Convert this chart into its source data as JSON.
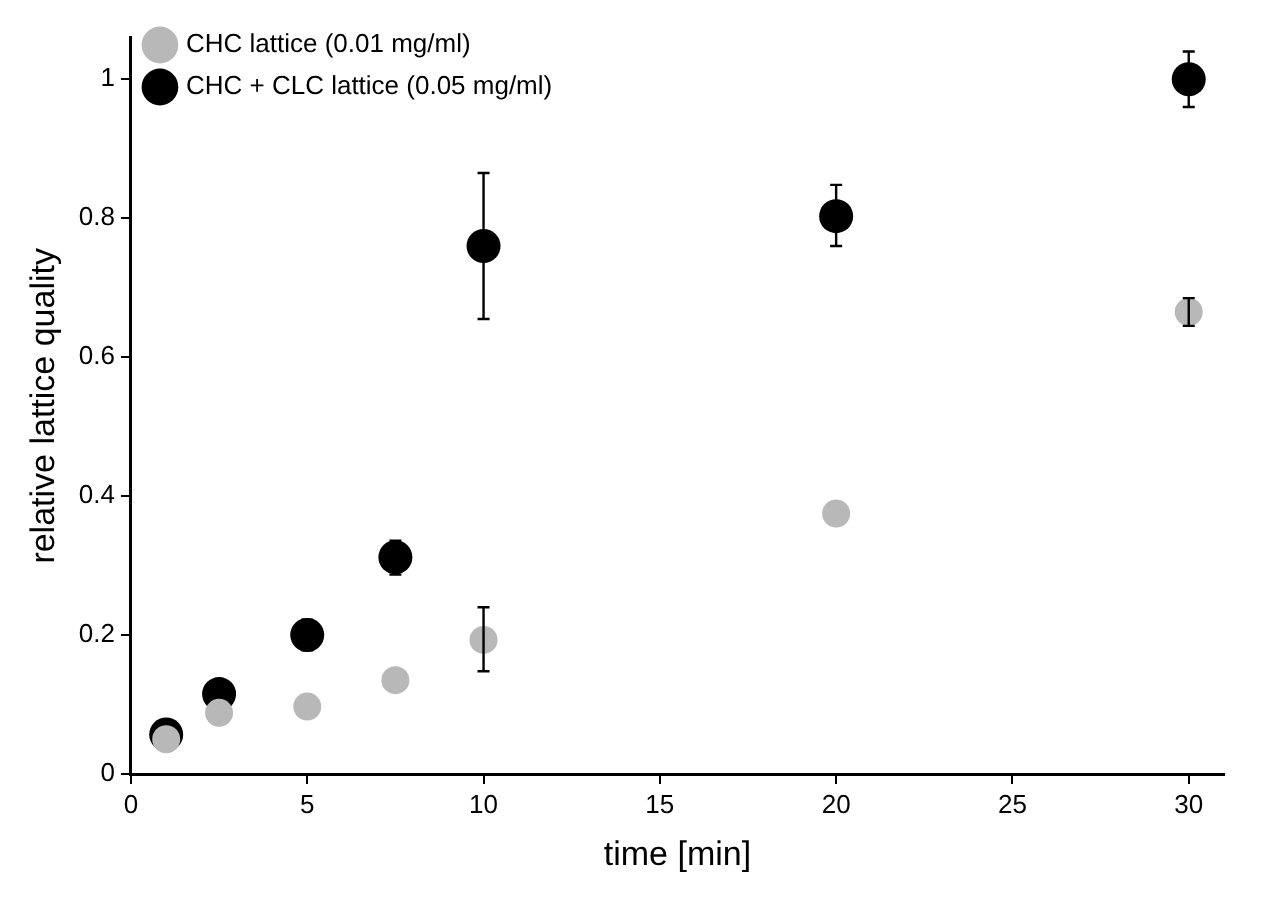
{
  "chart_data": {
    "type": "scatter",
    "xlabel": "time [min]",
    "ylabel": "relative lattice quality",
    "xlim": [
      0,
      31
    ],
    "xticks": [
      0,
      5,
      10,
      15,
      20,
      25,
      30
    ],
    "ylim": [
      0,
      1.06
    ],
    "yticks": [
      0,
      0.2,
      0.4,
      0.6,
      0.8,
      1
    ],
    "grid": false,
    "legend": "top left",
    "marker": "circle",
    "series": [
      {
        "name": "CHC lattice (0.01 mg/ml)",
        "color": "#b8b8b8",
        "x": [
          1,
          2.5,
          5,
          7.5,
          10,
          20,
          30
        ],
        "values": [
          0.05,
          0.088,
          0.097,
          0.135,
          0.193,
          0.375,
          0.665
        ],
        "errors": [
          null,
          null,
          null,
          null,
          [
            0.148,
            0.24
          ],
          null,
          [
            0.645,
            0.685
          ]
        ]
      },
      {
        "name": "CHC + CLC lattice (0.05 mg/ml)",
        "color": "#000000",
        "x": [
          1,
          2.5,
          5,
          7.5,
          10,
          20,
          30
        ],
        "values": [
          0.057,
          0.115,
          0.2,
          0.312,
          0.76,
          0.803,
          1.0
        ],
        "errors": [
          null,
          null,
          [
            0.178,
            0.222
          ],
          [
            0.287,
            0.336
          ],
          [
            0.655,
            0.865
          ],
          [
            0.76,
            0.848
          ],
          [
            0.96,
            1.04
          ]
        ]
      }
    ]
  }
}
